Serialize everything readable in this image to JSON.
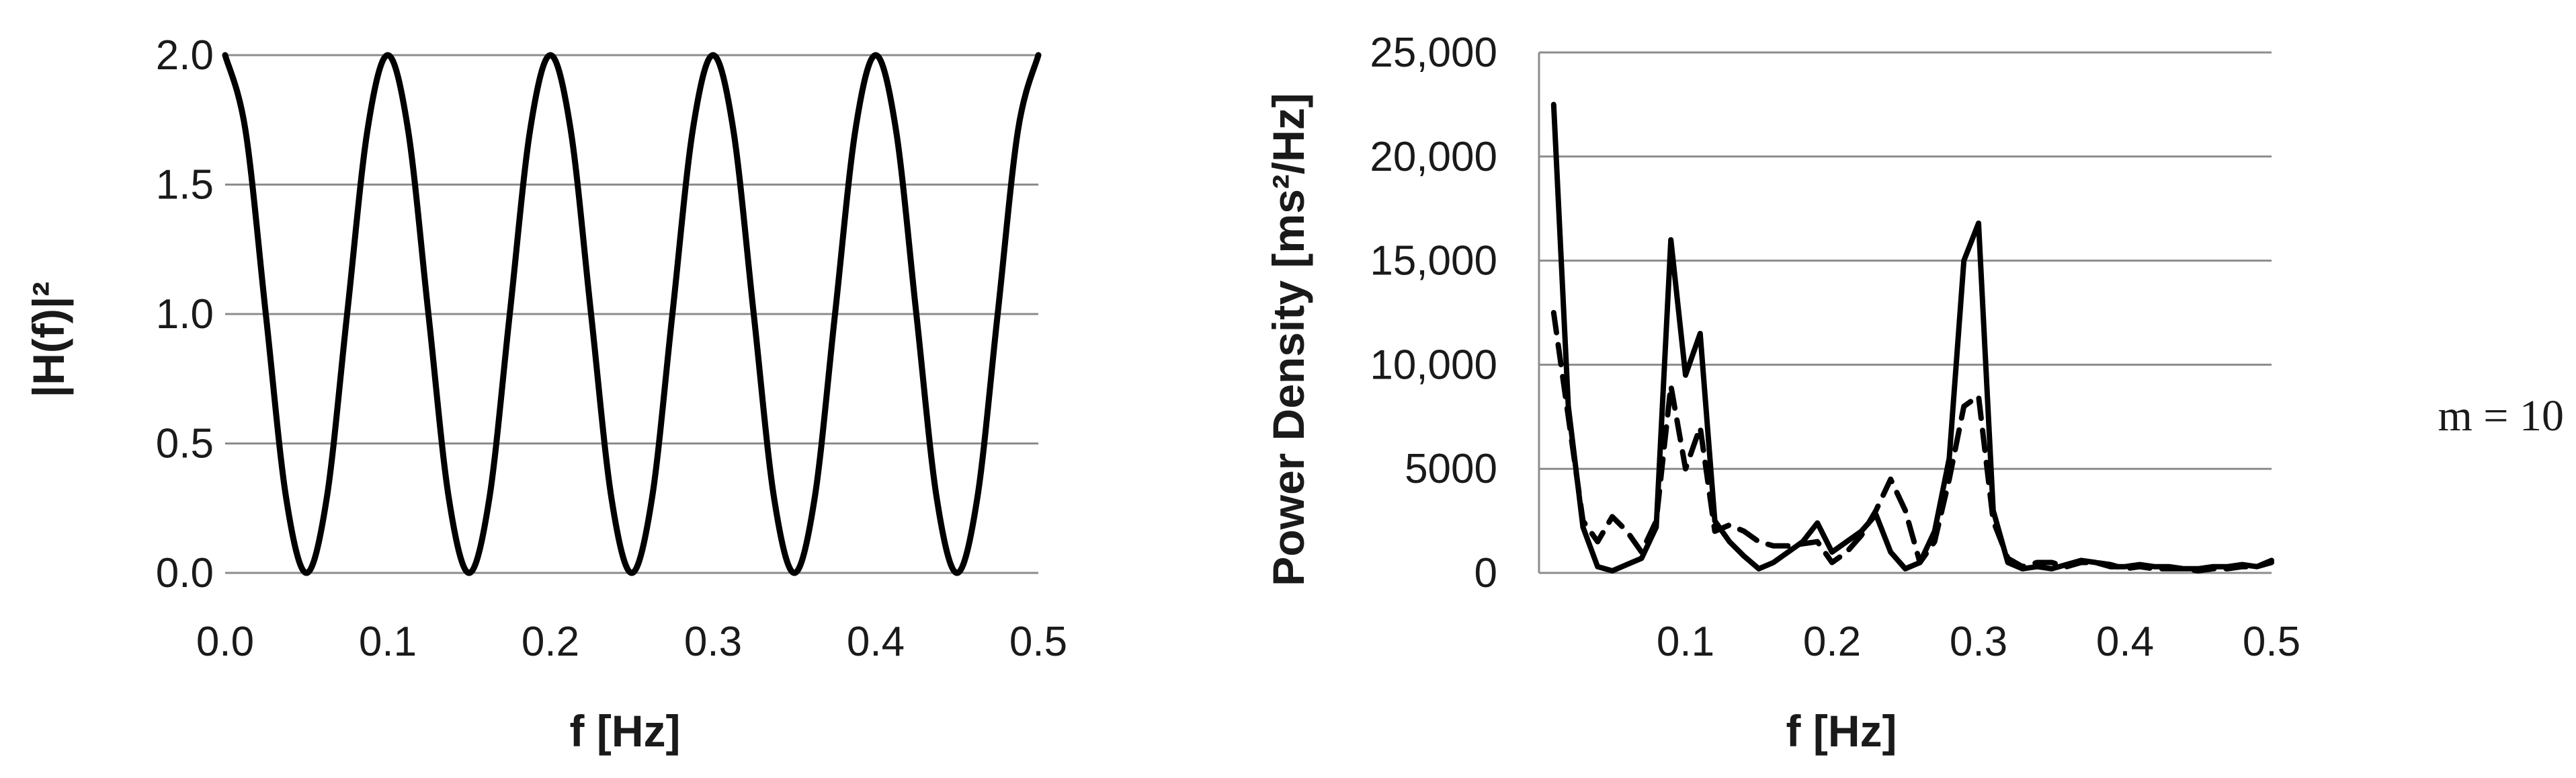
{
  "chart_data": [
    {
      "type": "line",
      "title": "",
      "xlabel": "f [Hz]",
      "ylabel": "|H(f)|²",
      "xlim": [
        0,
        0.5
      ],
      "ylim": [
        0,
        2.0
      ],
      "x_ticks": [
        "0.0",
        "0.1",
        "0.2",
        "0.3",
        "0.4",
        "0.5"
      ],
      "y_ticks": [
        "0.0",
        "0.5",
        "1.0",
        "1.5",
        "2.0"
      ],
      "grid": "horizontal",
      "series": [
        {
          "style": "solid",
          "color": "#000000",
          "x": [
            0.0,
            0.0125,
            0.025,
            0.0375,
            0.05,
            0.0625,
            0.075,
            0.0875,
            0.1,
            0.1125,
            0.125,
            0.1375,
            0.15,
            0.1625,
            0.175,
            0.1875,
            0.2,
            0.2125,
            0.225,
            0.2375,
            0.25,
            0.2625,
            0.275,
            0.2875,
            0.3,
            0.3125,
            0.325,
            0.3375,
            0.35,
            0.3625,
            0.375,
            0.3875,
            0.4,
            0.4125,
            0.425,
            0.4375,
            0.45,
            0.4625,
            0.475,
            0.4875,
            0.5
          ],
          "y": [
            2.0,
            1.71,
            1.0,
            0.29,
            0.0,
            0.29,
            1.0,
            1.71,
            2.0,
            1.71,
            1.0,
            0.29,
            0.0,
            0.29,
            1.0,
            1.71,
            2.0,
            1.71,
            1.0,
            0.29,
            0.0,
            0.29,
            1.0,
            1.71,
            2.0,
            1.71,
            1.0,
            0.29,
            0.0,
            0.29,
            1.0,
            1.71,
            2.0,
            1.71,
            1.0,
            0.29,
            0.0,
            0.29,
            1.0,
            1.71,
            2.0
          ]
        }
      ]
    },
    {
      "type": "line",
      "title": "",
      "xlabel": "f [Hz]",
      "ylabel": "Power Density [ms²/Hz]",
      "xlim": [
        0,
        0.5
      ],
      "ylim": [
        0,
        25000
      ],
      "x_ticks": [
        "0.1",
        "0.2",
        "0.3",
        "0.4",
        "0.5"
      ],
      "y_ticks": [
        "0",
        "5000",
        "10,000",
        "15,000",
        "20,000",
        "25,000"
      ],
      "grid": "horizontal",
      "annotation": "m = 10",
      "series": [
        {
          "style": "solid",
          "color": "#000000",
          "x": [
            0.01,
            0.02,
            0.03,
            0.04,
            0.05,
            0.06,
            0.07,
            0.08,
            0.09,
            0.1,
            0.11,
            0.12,
            0.13,
            0.14,
            0.15,
            0.16,
            0.17,
            0.18,
            0.19,
            0.2,
            0.21,
            0.22,
            0.23,
            0.24,
            0.25,
            0.26,
            0.27,
            0.28,
            0.29,
            0.3,
            0.31,
            0.32,
            0.33,
            0.34,
            0.35,
            0.36,
            0.37,
            0.38,
            0.39,
            0.4,
            0.41,
            0.42,
            0.43,
            0.44,
            0.45,
            0.46,
            0.47,
            0.48,
            0.49,
            0.5
          ],
          "y": [
            22500,
            8000,
            2200,
            300,
            100,
            400,
            700,
            2200,
            16000,
            9500,
            11500,
            2500,
            1500,
            800,
            200,
            500,
            1000,
            1500,
            2400,
            1000,
            1500,
            2000,
            2800,
            1000,
            200,
            500,
            2000,
            5500,
            15000,
            16800,
            3000,
            500,
            200,
            300,
            200,
            400,
            600,
            500,
            300,
            300,
            400,
            300,
            300,
            200,
            200,
            300,
            300,
            400,
            300,
            600
          ]
        },
        {
          "style": "dashed",
          "color": "#000000",
          "x": [
            0.01,
            0.02,
            0.03,
            0.04,
            0.05,
            0.06,
            0.07,
            0.08,
            0.09,
            0.1,
            0.11,
            0.12,
            0.13,
            0.14,
            0.15,
            0.16,
            0.17,
            0.18,
            0.19,
            0.2,
            0.21,
            0.22,
            0.23,
            0.24,
            0.25,
            0.26,
            0.27,
            0.28,
            0.29,
            0.3,
            0.31,
            0.32,
            0.33,
            0.34,
            0.35,
            0.36,
            0.37,
            0.38,
            0.39,
            0.4,
            0.41,
            0.42,
            0.43,
            0.44,
            0.45,
            0.46,
            0.47,
            0.48,
            0.49,
            0.5
          ],
          "y": [
            12500,
            7500,
            2500,
            1500,
            2700,
            2000,
            1000,
            2500,
            9000,
            5000,
            7000,
            2000,
            2300,
            2000,
            1500,
            1300,
            1300,
            1400,
            1500,
            500,
            1000,
            1800,
            3000,
            4500,
            3000,
            500,
            1500,
            4500,
            8000,
            8500,
            2500,
            700,
            300,
            500,
            500,
            300,
            500,
            500,
            400,
            200,
            300,
            200,
            200,
            200,
            100,
            200,
            200,
            300,
            300,
            500
          ]
        }
      ]
    }
  ]
}
